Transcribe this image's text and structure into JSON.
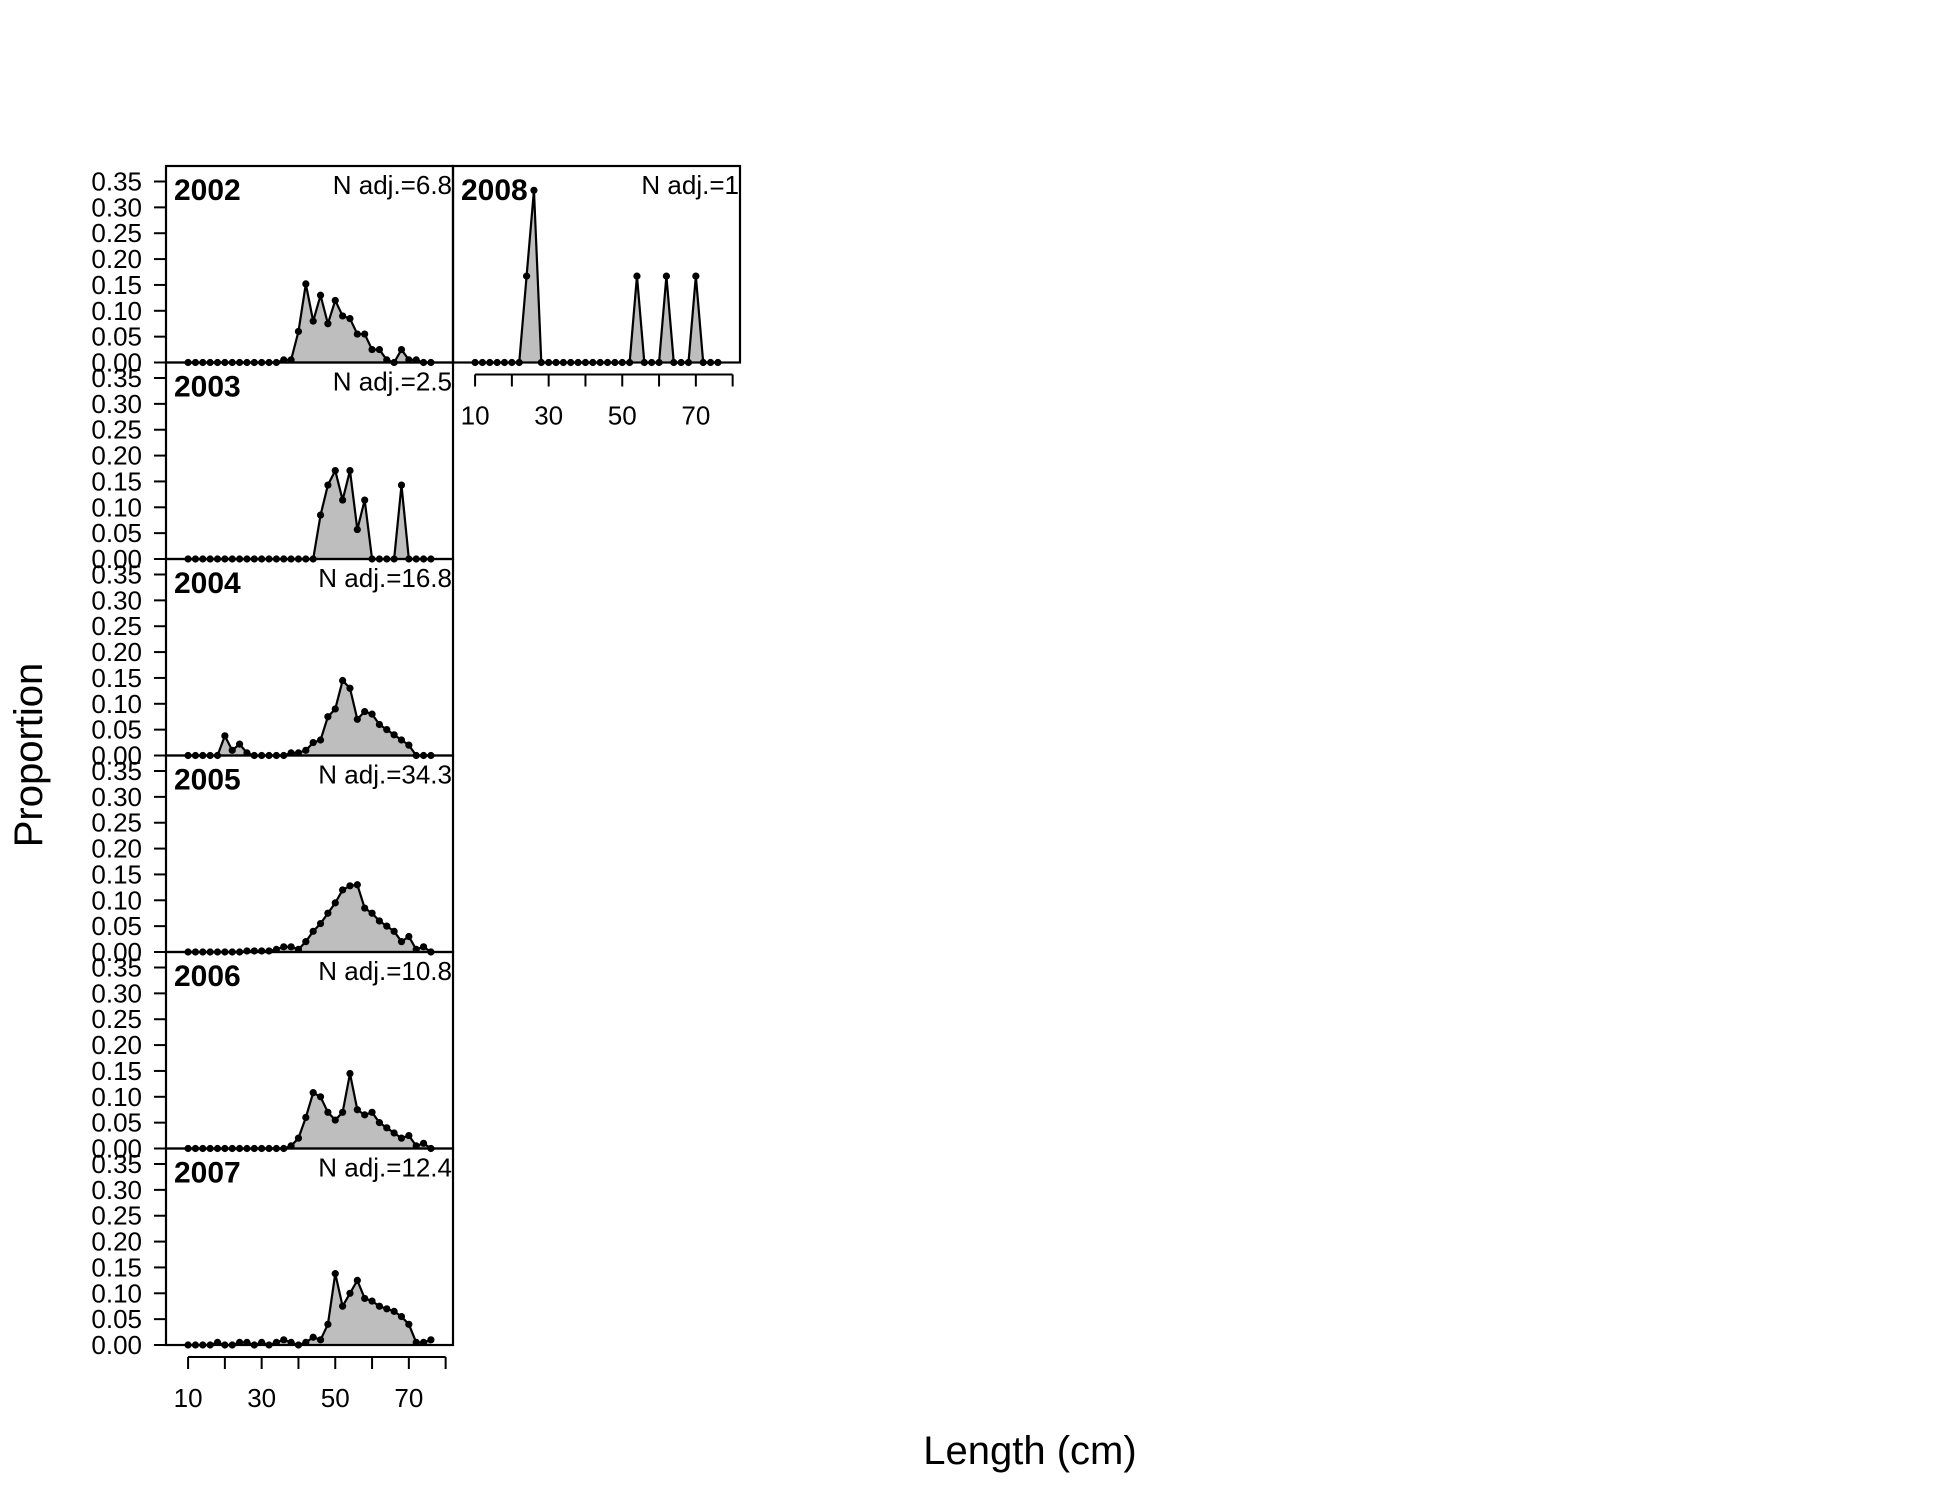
{
  "figure": {
    "xlabel": "Length (cm)",
    "ylabel": "Proportion"
  },
  "chart_data": {
    "type": "area",
    "xlabel": "Length (cm)",
    "ylabel": "Proportion",
    "xlim": [
      4,
      82
    ],
    "ylim": [
      0,
      0.38
    ],
    "x_ticks": [
      10,
      30,
      50,
      70
    ],
    "x_tick_labels": [
      "10",
      "30",
      "50",
      "70"
    ],
    "y_ticks": [
      0,
      0.05,
      0.1,
      0.15,
      0.2,
      0.25,
      0.3,
      0.35
    ],
    "y_tick_labels": [
      "0.00",
      "0.05",
      "0.10",
      "0.15",
      "0.20",
      "0.25",
      "0.30",
      "0.35"
    ],
    "grid": false,
    "fill_color": "#bebebe",
    "line_color": "#000000",
    "panels": [
      {
        "year": "2002",
        "n_label": "N adj.=6.8",
        "x": [
          10,
          12,
          14,
          16,
          18,
          20,
          22,
          24,
          26,
          28,
          30,
          32,
          34,
          36,
          38,
          40,
          42,
          44,
          46,
          48,
          50,
          52,
          54,
          56,
          58,
          60,
          62,
          64,
          66,
          68,
          70,
          72,
          74,
          76
        ],
        "values": [
          0,
          0,
          0,
          0,
          0,
          0,
          0,
          0,
          0,
          0,
          0,
          0,
          0,
          0.005,
          0.005,
          0.06,
          0.152,
          0.08,
          0.13,
          0.075,
          0.12,
          0.09,
          0.085,
          0.055,
          0.055,
          0.025,
          0.025,
          0.005,
          0,
          0.025,
          0.005,
          0.005,
          0,
          0
        ]
      },
      {
        "year": "2003",
        "n_label": "N adj.=2.5",
        "x": [
          10,
          12,
          14,
          16,
          18,
          20,
          22,
          24,
          26,
          28,
          30,
          32,
          34,
          36,
          38,
          40,
          42,
          44,
          46,
          48,
          50,
          52,
          54,
          56,
          58,
          60,
          62,
          64,
          66,
          68,
          70,
          72,
          74,
          76
        ],
        "values": [
          0,
          0,
          0,
          0,
          0,
          0,
          0,
          0,
          0,
          0,
          0,
          0,
          0,
          0,
          0,
          0,
          0,
          0,
          0.085,
          0.143,
          0.171,
          0.114,
          0.171,
          0.057,
          0.114,
          0,
          0,
          0,
          0,
          0.143,
          0,
          0,
          0,
          0
        ]
      },
      {
        "year": "2004",
        "n_label": "N adj.=16.8",
        "x": [
          10,
          12,
          14,
          16,
          18,
          20,
          22,
          24,
          26,
          28,
          30,
          32,
          34,
          36,
          38,
          40,
          42,
          44,
          46,
          48,
          50,
          52,
          54,
          56,
          58,
          60,
          62,
          64,
          66,
          68,
          70,
          72,
          74,
          76
        ],
        "values": [
          0,
          0,
          0,
          0,
          0,
          0.038,
          0.01,
          0.022,
          0.005,
          0,
          0,
          0,
          0,
          0,
          0.005,
          0.005,
          0.01,
          0.025,
          0.03,
          0.075,
          0.09,
          0.145,
          0.13,
          0.07,
          0.085,
          0.08,
          0.06,
          0.05,
          0.04,
          0.03,
          0.02,
          0,
          0,
          0
        ]
      },
      {
        "year": "2005",
        "n_label": "N adj.=34.3",
        "x": [
          10,
          12,
          14,
          16,
          18,
          20,
          22,
          24,
          26,
          28,
          30,
          32,
          34,
          36,
          38,
          40,
          42,
          44,
          46,
          48,
          50,
          52,
          54,
          56,
          58,
          60,
          62,
          64,
          66,
          68,
          70,
          72,
          74,
          76
        ],
        "values": [
          0,
          0,
          0,
          0,
          0,
          0,
          0,
          0,
          0.002,
          0.002,
          0.002,
          0.002,
          0.005,
          0.01,
          0.01,
          0.005,
          0.02,
          0.04,
          0.055,
          0.075,
          0.095,
          0.12,
          0.128,
          0.13,
          0.085,
          0.075,
          0.06,
          0.05,
          0.04,
          0.02,
          0.03,
          0.005,
          0.01,
          0
        ]
      },
      {
        "year": "2006",
        "n_label": "N adj.=10.8",
        "x": [
          10,
          12,
          14,
          16,
          18,
          20,
          22,
          24,
          26,
          28,
          30,
          32,
          34,
          36,
          38,
          40,
          42,
          44,
          46,
          48,
          50,
          52,
          54,
          56,
          58,
          60,
          62,
          64,
          66,
          68,
          70,
          72,
          74,
          76
        ],
        "values": [
          0,
          0,
          0,
          0,
          0,
          0,
          0,
          0,
          0,
          0,
          0,
          0,
          0,
          0,
          0.005,
          0.02,
          0.06,
          0.108,
          0.1,
          0.07,
          0.055,
          0.07,
          0.145,
          0.075,
          0.065,
          0.07,
          0.05,
          0.04,
          0.03,
          0.02,
          0.025,
          0.005,
          0.01,
          0
        ]
      },
      {
        "year": "2007",
        "n_label": "N adj.=12.4",
        "x": [
          10,
          12,
          14,
          16,
          18,
          20,
          22,
          24,
          26,
          28,
          30,
          32,
          34,
          36,
          38,
          40,
          42,
          44,
          46,
          48,
          50,
          52,
          54,
          56,
          58,
          60,
          62,
          64,
          66,
          68,
          70,
          72,
          74,
          76
        ],
        "values": [
          0,
          0,
          0,
          0,
          0.005,
          0,
          0,
          0.005,
          0.005,
          0,
          0.005,
          0,
          0.005,
          0.01,
          0.005,
          0,
          0.005,
          0.015,
          0.01,
          0.04,
          0.138,
          0.075,
          0.1,
          0.125,
          0.09,
          0.085,
          0.075,
          0.07,
          0.065,
          0.055,
          0.04,
          0.005,
          0.005,
          0.01
        ]
      },
      {
        "year": "2008",
        "n_label": "N adj.=1",
        "x": [
          10,
          12,
          14,
          16,
          18,
          20,
          22,
          24,
          26,
          28,
          30,
          32,
          34,
          36,
          38,
          40,
          42,
          44,
          46,
          48,
          50,
          52,
          54,
          56,
          58,
          60,
          62,
          64,
          66,
          68,
          70,
          72,
          74,
          76
        ],
        "values": [
          0,
          0,
          0,
          0,
          0,
          0,
          0,
          0.167,
          0.333,
          0,
          0,
          0,
          0,
          0,
          0,
          0,
          0,
          0,
          0,
          0,
          0,
          0,
          0.167,
          0,
          0,
          0,
          0.167,
          0,
          0,
          0,
          0.167,
          0,
          0,
          0
        ]
      }
    ]
  }
}
